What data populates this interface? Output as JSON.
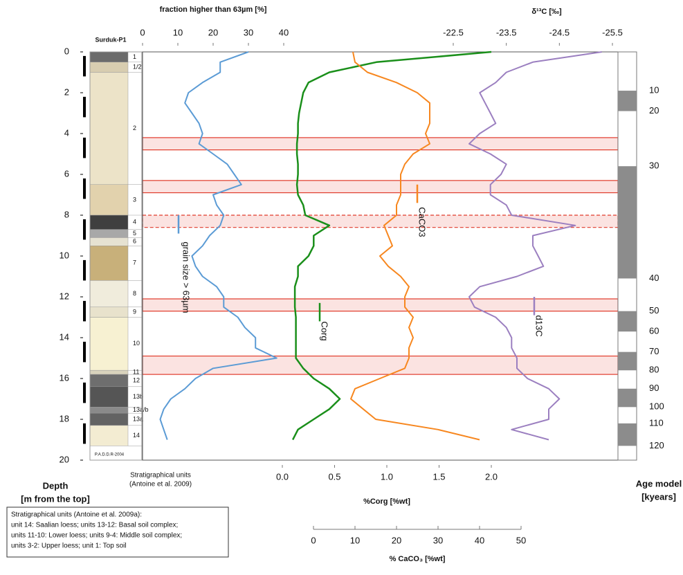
{
  "chart_data": {
    "type": "line",
    "column_title": "Surduk-P1",
    "column_credit": "P.A.D.D.R-2004",
    "y_label": [
      "Depth",
      "[m from the top]"
    ],
    "ylim": [
      0,
      20
    ],
    "yticks": [
      0,
      2,
      4,
      6,
      8,
      10,
      12,
      14,
      16,
      18,
      20
    ],
    "y": [
      0,
      0.5,
      1,
      1.5,
      2,
      2.5,
      3,
      3.5,
      4,
      4.5,
      5,
      5.5,
      6,
      6.5,
      7,
      7.5,
      8,
      8.5,
      9,
      9.5,
      10,
      10.5,
      11,
      11.5,
      12,
      12.5,
      13,
      13.5,
      14,
      14.5,
      15,
      15.5,
      16,
      16.5,
      17,
      17.5,
      18,
      18.5,
      19
    ],
    "axes": [
      {
        "id": "frac",
        "title": "fraction higher than 63µm [%]",
        "side": "top",
        "xlim": [
          0,
          40
        ],
        "xticks": [
          0,
          10,
          20,
          30,
          40
        ]
      },
      {
        "id": "d13c",
        "title": "δ¹³C [‰]",
        "side": "top",
        "xlim": [
          -22.5,
          -25.5
        ],
        "xticks": [
          -22.5,
          -23.5,
          -24.5,
          -25.5
        ]
      },
      {
        "id": "corg",
        "title": "%Corg [%wt]",
        "side": "bottom",
        "xlim": [
          0,
          2
        ],
        "xticks": [
          {
            "value": 0,
            "label": "0.0"
          },
          0.5,
          {
            "value": 1,
            "label": "1.0"
          },
          1.5,
          {
            "value": 2,
            "label": "2.0"
          }
        ]
      },
      {
        "id": "caco3",
        "title": "% CaCO₃ [%wt]",
        "side": "bottom",
        "xlim": [
          0,
          50
        ],
        "xticks": [
          0,
          10,
          20,
          30,
          40,
          50
        ]
      }
    ],
    "series": [
      {
        "name": "grain size > 63µm",
        "axis": "frac",
        "color": "#5b9bd5",
        "values": [
          30,
          22,
          22,
          17,
          13,
          12,
          14,
          16,
          17,
          16,
          20,
          24,
          26,
          28,
          20,
          21,
          23,
          22,
          19,
          17,
          14,
          15,
          17,
          21,
          23,
          23,
          27,
          29,
          32,
          32,
          38,
          20,
          15,
          12,
          8,
          6,
          5,
          6,
          7
        ]
      },
      {
        "name": "Corg",
        "axis": "corg",
        "color": "#1a8f1a",
        "values": [
          2.0,
          0.9,
          0.45,
          0.25,
          0.2,
          0.18,
          0.16,
          0.15,
          0.15,
          0.14,
          0.14,
          0.15,
          0.15,
          0.14,
          0.15,
          0.2,
          0.22,
          0.45,
          0.3,
          0.3,
          0.25,
          0.15,
          0.15,
          0.12,
          0.12,
          0.12,
          0.13,
          0.13,
          0.13,
          0.13,
          0.13,
          0.2,
          0.3,
          0.45,
          0.55,
          0.45,
          0.3,
          0.15,
          0.1
        ]
      },
      {
        "name": "CaCO3",
        "axis": "caco3",
        "color": "#f7871f",
        "values": [
          9.5,
          10,
          13,
          20,
          25,
          28,
          28,
          28,
          27,
          28,
          24,
          22,
          21,
          21,
          21,
          20,
          20,
          17,
          18,
          19,
          16,
          18,
          21,
          23,
          22,
          22,
          24,
          23,
          24,
          23,
          23,
          22,
          16,
          10,
          9,
          12,
          15,
          30,
          40
        ]
      },
      {
        "name": "d13C",
        "axis": "d13c",
        "color": "#9b7fc0",
        "values": [
          -25.3,
          -24.0,
          -23.5,
          -23.3,
          -23.0,
          -23.1,
          -23.2,
          -23.3,
          -23.0,
          -22.8,
          -23.2,
          -23.5,
          -23.4,
          -23.2,
          -23.2,
          -23.5,
          -23.6,
          -24.8,
          -24.0,
          -24.0,
          -24.1,
          -24.2,
          -23.7,
          -23.0,
          -22.8,
          -22.9,
          -23.3,
          -23.5,
          -23.6,
          -23.6,
          -23.7,
          -23.7,
          -23.9,
          -24.3,
          -24.5,
          -24.3,
          -24.3,
          -23.6,
          -24.3
        ]
      }
    ],
    "highlights": [
      {
        "from": 4.2,
        "to": 4.8,
        "style": "solid"
      },
      {
        "from": 6.3,
        "to": 6.9,
        "style": "solid"
      },
      {
        "from": 8.0,
        "to": 8.6,
        "style": "dashed"
      },
      {
        "from": 12.1,
        "to": 12.7,
        "style": "solid"
      },
      {
        "from": 14.9,
        "to": 15.8,
        "style": "solid"
      }
    ],
    "units_title": [
      "Stratigraphical units",
      "(Antoine et al. 2009)"
    ],
    "units": [
      {
        "label": "1",
        "top": 0,
        "bottom": 0.5,
        "color": "#6b6b6b"
      },
      {
        "label": "1/2",
        "top": 0.5,
        "bottom": 1.0,
        "color": "#d8cdb0"
      },
      {
        "label": "2",
        "top": 1.0,
        "bottom": 6.5,
        "color": "#ece3c8"
      },
      {
        "label": "3",
        "top": 6.5,
        "bottom": 8.0,
        "color": "#e2d2ad"
      },
      {
        "label": "4",
        "top": 8.0,
        "bottom": 8.7,
        "color": "#3f3f3f"
      },
      {
        "label": "5",
        "top": 8.7,
        "bottom": 9.1,
        "color": "#a8a8a8"
      },
      {
        "label": "6",
        "top": 9.1,
        "bottom": 9.5,
        "color": "#e6e2d2"
      },
      {
        "label": "7",
        "top": 9.5,
        "bottom": 11.2,
        "color": "#c8b07a"
      },
      {
        "label": "8",
        "top": 11.2,
        "bottom": 12.5,
        "color": "#f0ecdc"
      },
      {
        "label": "9",
        "top": 12.5,
        "bottom": 13.0,
        "color": "#e8e2cc"
      },
      {
        "label": "10",
        "top": 13.0,
        "bottom": 15.6,
        "color": "#f7f1d2"
      },
      {
        "label": "11",
        "top": 15.6,
        "bottom": 15.8,
        "color": "#d9d3bd"
      },
      {
        "label": "12",
        "top": 15.8,
        "bottom": 16.4,
        "color": "#6e6e6e"
      },
      {
        "label": "13b",
        "top": 16.4,
        "bottom": 17.4,
        "color": "#555555"
      },
      {
        "label": "13a/b",
        "top": 17.4,
        "bottom": 17.7,
        "color": "#8a8a8a"
      },
      {
        "label": "13a",
        "top": 17.7,
        "bottom": 18.3,
        "color": "#636363"
      },
      {
        "label": "14",
        "top": 18.3,
        "bottom": 19.3,
        "color": "#f3ecd2"
      }
    ],
    "age_model": {
      "title": [
        "Age model",
        "[kyears]"
      ],
      "marks": [
        {
          "age": 10,
          "depth": 1.9
        },
        {
          "age": 20,
          "depth": 2.9
        },
        {
          "age": 30,
          "depth": 5.6
        },
        {
          "age": 40,
          "depth": 11.1
        },
        {
          "age": 50,
          "depth": 12.7
        },
        {
          "age": 60,
          "depth": 13.7
        },
        {
          "age": 70,
          "depth": 14.7
        },
        {
          "age": 80,
          "depth": 15.6
        },
        {
          "age": 90,
          "depth": 16.5
        },
        {
          "age": 100,
          "depth": 17.4
        },
        {
          "age": 110,
          "depth": 18.2
        },
        {
          "age": 120,
          "depth": 19.3
        }
      ]
    },
    "note": [
      "Stratigraphical units (Antoine et al. 2009a):",
      "unit 14: Saalian loess; units 13-12: Basal soil complex;",
      "units 11-10: Lower loess; units 9-4: Middle soil complex;",
      "units 3-2: Upper loess; unit 1: Top soil"
    ]
  }
}
